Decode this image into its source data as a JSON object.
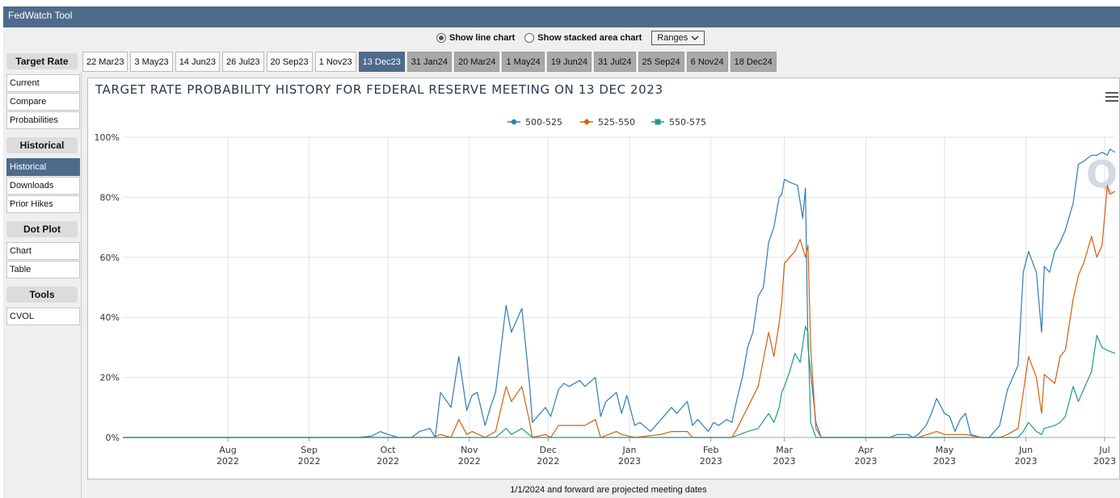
{
  "app": {
    "title": "FedWatch Tool"
  },
  "view_mode": {
    "line_label": "Show line chart",
    "area_label": "Show stacked area chart",
    "selected": "line",
    "ranges_label": "Ranges"
  },
  "sidebar": {
    "sections": [
      {
        "heading": "Target Rate",
        "items": [
          "Current",
          "Compare",
          "Probabilities"
        ]
      },
      {
        "heading": "Historical",
        "items": [
          "Historical",
          "Downloads",
          "Prior Hikes"
        ]
      },
      {
        "heading": "Dot Plot",
        "items": [
          "Chart",
          "Table"
        ]
      },
      {
        "heading": "Tools",
        "items": [
          "CVOL"
        ]
      }
    ],
    "active_item": "Historical"
  },
  "meeting_tabs": {
    "items": [
      "22 Mar23",
      "3 May23",
      "14 Jun23",
      "26 Jul23",
      "20 Sep23",
      "1 Nov23",
      "13 Dec23",
      "31 Jan24",
      "20 Mar24",
      "1 May24",
      "19 Jun24",
      "31 Jul24",
      "25 Sep24",
      "6 Nov24",
      "18 Dec24"
    ],
    "active": "13 Dec23",
    "future_from_index": 7
  },
  "footer_note": "1/1/2024 and forward are projected meeting dates",
  "colors": {
    "s500": "#2f7cb5",
    "s525": "#d45f0e",
    "s550": "#1e9a8a",
    "active_tab": "#4f6b8c"
  },
  "chart_data": {
    "type": "line",
    "title": "TARGET RATE PROBABILITY HISTORY FOR FEDERAL RESERVE MEETING ON 13 DEC 2023",
    "ylabel": "",
    "xlabel": "",
    "ylim": [
      0,
      100
    ],
    "y_ticks": [
      "0%",
      "20%",
      "40%",
      "60%",
      "80%",
      "100%"
    ],
    "x_ticks": [
      {
        "date": "2022-08-01",
        "month": "Aug",
        "year": "2022"
      },
      {
        "date": "2022-09-01",
        "month": "Sep",
        "year": "2022"
      },
      {
        "date": "2022-10-01",
        "month": "Oct",
        "year": "2022"
      },
      {
        "date": "2022-11-01",
        "month": "Nov",
        "year": "2022"
      },
      {
        "date": "2022-12-01",
        "month": "Dec",
        "year": "2022"
      },
      {
        "date": "2023-01-01",
        "month": "Jan",
        "year": "2023"
      },
      {
        "date": "2023-02-01",
        "month": "Feb",
        "year": "2023"
      },
      {
        "date": "2023-03-01",
        "month": "Mar",
        "year": "2023"
      },
      {
        "date": "2023-04-01",
        "month": "Apr",
        "year": "2023"
      },
      {
        "date": "2023-05-01",
        "month": "May",
        "year": "2023"
      },
      {
        "date": "2023-06-01",
        "month": "Jun",
        "year": "2023"
      },
      {
        "date": "2023-07-01",
        "month": "Jul",
        "year": "2023"
      }
    ],
    "x_range": [
      "2022-06-22",
      "2023-07-05"
    ],
    "grid": true,
    "legend_position": "top-center",
    "series": [
      {
        "name": "500-525",
        "points": [
          [
            "2022-06-22",
            0
          ],
          [
            "2022-09-20",
            0
          ],
          [
            "2022-09-25",
            0.5
          ],
          [
            "2022-09-28",
            2
          ],
          [
            "2022-10-01",
            1
          ],
          [
            "2022-10-05",
            0
          ],
          [
            "2022-10-10",
            0
          ],
          [
            "2022-10-13",
            2
          ],
          [
            "2022-10-17",
            3
          ],
          [
            "2022-10-19",
            0
          ],
          [
            "2022-10-21",
            15
          ],
          [
            "2022-10-25",
            10
          ],
          [
            "2022-10-28",
            27
          ],
          [
            "2022-10-31",
            9
          ],
          [
            "2022-11-02",
            14
          ],
          [
            "2022-11-04",
            15
          ],
          [
            "2022-11-07",
            4
          ],
          [
            "2022-11-09",
            10
          ],
          [
            "2022-11-11",
            15
          ],
          [
            "2022-11-15",
            44
          ],
          [
            "2022-11-17",
            35
          ],
          [
            "2022-11-21",
            43
          ],
          [
            "2022-11-24",
            17
          ],
          [
            "2022-11-25",
            5
          ],
          [
            "2022-11-28",
            8
          ],
          [
            "2022-11-30",
            10
          ],
          [
            "2022-12-02",
            7
          ],
          [
            "2022-12-05",
            16
          ],
          [
            "2022-12-07",
            18
          ],
          [
            "2022-12-09",
            17
          ],
          [
            "2022-12-13",
            19
          ],
          [
            "2022-12-15",
            17
          ],
          [
            "2022-12-19",
            20
          ],
          [
            "2022-12-21",
            7
          ],
          [
            "2022-12-23",
            12
          ],
          [
            "2022-12-27",
            15
          ],
          [
            "2022-12-29",
            8
          ],
          [
            "2022-12-31",
            14
          ],
          [
            "2023-01-03",
            4
          ],
          [
            "2023-01-05",
            5
          ],
          [
            "2023-01-09",
            2
          ],
          [
            "2023-01-11",
            4
          ],
          [
            "2023-01-13",
            6
          ],
          [
            "2023-01-17",
            10
          ],
          [
            "2023-01-19",
            8
          ],
          [
            "2023-01-23",
            12
          ],
          [
            "2023-01-25",
            4
          ],
          [
            "2023-01-27",
            6
          ],
          [
            "2023-01-31",
            2
          ],
          [
            "2023-02-02",
            5
          ],
          [
            "2023-02-04",
            4
          ],
          [
            "2023-02-07",
            6
          ],
          [
            "2023-02-09",
            5
          ],
          [
            "2023-02-11",
            13
          ],
          [
            "2023-02-13",
            20
          ],
          [
            "2023-02-15",
            30
          ],
          [
            "2023-02-17",
            35
          ],
          [
            "2023-02-19",
            47
          ],
          [
            "2023-02-21",
            50
          ],
          [
            "2023-02-23",
            65
          ],
          [
            "2023-02-25",
            70
          ],
          [
            "2023-02-27",
            80
          ],
          [
            "2023-02-28",
            81
          ],
          [
            "2023-03-01",
            86
          ],
          [
            "2023-03-03",
            85
          ],
          [
            "2023-03-06",
            84
          ],
          [
            "2023-03-08",
            73
          ],
          [
            "2023-03-09",
            83
          ],
          [
            "2023-03-10",
            30
          ],
          [
            "2023-03-13",
            5
          ],
          [
            "2023-03-15",
            0
          ],
          [
            "2023-03-20",
            0
          ],
          [
            "2023-04-01",
            0
          ],
          [
            "2023-04-10",
            0
          ],
          [
            "2023-04-13",
            1
          ],
          [
            "2023-04-17",
            1
          ],
          [
            "2023-04-19",
            0
          ],
          [
            "2023-04-21",
            1
          ],
          [
            "2023-04-24",
            4
          ],
          [
            "2023-04-26",
            8
          ],
          [
            "2023-04-28",
            13
          ],
          [
            "2023-05-01",
            8
          ],
          [
            "2023-05-03",
            7
          ],
          [
            "2023-05-05",
            2
          ],
          [
            "2023-05-07",
            6
          ],
          [
            "2023-05-09",
            8
          ],
          [
            "2023-05-11",
            1
          ],
          [
            "2023-05-15",
            0
          ],
          [
            "2023-05-18",
            0
          ],
          [
            "2023-05-22",
            4
          ],
          [
            "2023-05-25",
            16
          ],
          [
            "2023-05-29",
            24
          ],
          [
            "2023-05-31",
            55
          ],
          [
            "2023-06-02",
            62
          ],
          [
            "2023-06-05",
            55
          ],
          [
            "2023-06-07",
            35
          ],
          [
            "2023-06-08",
            57
          ],
          [
            "2023-06-10",
            55
          ],
          [
            "2023-06-12",
            62
          ],
          [
            "2023-06-14",
            65
          ],
          [
            "2023-06-16",
            69
          ],
          [
            "2023-06-19",
            78
          ],
          [
            "2023-06-21",
            91
          ],
          [
            "2023-06-23",
            92
          ],
          [
            "2023-06-26",
            94
          ],
          [
            "2023-06-28",
            94
          ],
          [
            "2023-06-30",
            95
          ],
          [
            "2023-07-02",
            94
          ],
          [
            "2023-07-03",
            96
          ],
          [
            "2023-07-05",
            95
          ]
        ]
      },
      {
        "name": "525-550",
        "points": [
          [
            "2022-06-22",
            0
          ],
          [
            "2022-10-18",
            0
          ],
          [
            "2022-10-21",
            1
          ],
          [
            "2022-10-25",
            0
          ],
          [
            "2022-10-28",
            6
          ],
          [
            "2022-10-31",
            1
          ],
          [
            "2022-11-02",
            2
          ],
          [
            "2022-11-07",
            0
          ],
          [
            "2022-11-11",
            2
          ],
          [
            "2022-11-15",
            17
          ],
          [
            "2022-11-17",
            12
          ],
          [
            "2022-11-21",
            17
          ],
          [
            "2022-11-24",
            5
          ],
          [
            "2022-11-25",
            0
          ],
          [
            "2022-11-30",
            1
          ],
          [
            "2022-12-02",
            0
          ],
          [
            "2022-12-05",
            4
          ],
          [
            "2022-12-09",
            4
          ],
          [
            "2022-12-15",
            4
          ],
          [
            "2022-12-19",
            6
          ],
          [
            "2022-12-21",
            0
          ],
          [
            "2022-12-27",
            2
          ],
          [
            "2022-12-29",
            1
          ],
          [
            "2023-01-03",
            0
          ],
          [
            "2023-01-13",
            1
          ],
          [
            "2023-01-17",
            2
          ],
          [
            "2023-01-23",
            2
          ],
          [
            "2023-01-25",
            0
          ],
          [
            "2023-02-09",
            0
          ],
          [
            "2023-02-11",
            3
          ],
          [
            "2023-02-15",
            10
          ],
          [
            "2023-02-19",
            17
          ],
          [
            "2023-02-23",
            35
          ],
          [
            "2023-02-25",
            27
          ],
          [
            "2023-02-27",
            38
          ],
          [
            "2023-02-28",
            45
          ],
          [
            "2023-03-01",
            58
          ],
          [
            "2023-03-03",
            60
          ],
          [
            "2023-03-05",
            62
          ],
          [
            "2023-03-07",
            66
          ],
          [
            "2023-03-09",
            60
          ],
          [
            "2023-03-10",
            64
          ],
          [
            "2023-03-11",
            30
          ],
          [
            "2023-03-13",
            3
          ],
          [
            "2023-03-15",
            0
          ],
          [
            "2023-04-21",
            0
          ],
          [
            "2023-04-28",
            2
          ],
          [
            "2023-05-01",
            1
          ],
          [
            "2023-05-07",
            1
          ],
          [
            "2023-05-09",
            1
          ],
          [
            "2023-05-15",
            0
          ],
          [
            "2023-05-22",
            0
          ],
          [
            "2023-05-25",
            1
          ],
          [
            "2023-05-29",
            3
          ],
          [
            "2023-05-31",
            15
          ],
          [
            "2023-06-02",
            27
          ],
          [
            "2023-06-05",
            20
          ],
          [
            "2023-06-07",
            8
          ],
          [
            "2023-06-08",
            21
          ],
          [
            "2023-06-12",
            18
          ],
          [
            "2023-06-14",
            27
          ],
          [
            "2023-06-16",
            29
          ],
          [
            "2023-06-19",
            46
          ],
          [
            "2023-06-21",
            54
          ],
          [
            "2023-06-23",
            58
          ],
          [
            "2023-06-26",
            67
          ],
          [
            "2023-06-28",
            60
          ],
          [
            "2023-06-30",
            64
          ],
          [
            "2023-07-02",
            84
          ],
          [
            "2023-07-03",
            81
          ],
          [
            "2023-07-05",
            82
          ]
        ]
      },
      {
        "name": "550-575",
        "points": [
          [
            "2022-06-22",
            0
          ],
          [
            "2022-11-11",
            0
          ],
          [
            "2022-11-15",
            3
          ],
          [
            "2022-11-17",
            1
          ],
          [
            "2022-11-21",
            3
          ],
          [
            "2022-11-25",
            0
          ],
          [
            "2023-02-09",
            0
          ],
          [
            "2023-02-15",
            2
          ],
          [
            "2023-02-19",
            3
          ],
          [
            "2023-02-23",
            8
          ],
          [
            "2023-02-25",
            5
          ],
          [
            "2023-02-27",
            10
          ],
          [
            "2023-02-28",
            15
          ],
          [
            "2023-03-01",
            17
          ],
          [
            "2023-03-03",
            22
          ],
          [
            "2023-03-05",
            28
          ],
          [
            "2023-03-07",
            25
          ],
          [
            "2023-03-09",
            37
          ],
          [
            "2023-03-10",
            35
          ],
          [
            "2023-03-11",
            5
          ],
          [
            "2023-03-13",
            0
          ],
          [
            "2023-05-29",
            0
          ],
          [
            "2023-05-31",
            2
          ],
          [
            "2023-06-02",
            5
          ],
          [
            "2023-06-05",
            2
          ],
          [
            "2023-06-07",
            1
          ],
          [
            "2023-06-08",
            3
          ],
          [
            "2023-06-12",
            4
          ],
          [
            "2023-06-14",
            5
          ],
          [
            "2023-06-16",
            7
          ],
          [
            "2023-06-19",
            17
          ],
          [
            "2023-06-21",
            12
          ],
          [
            "2023-06-23",
            16
          ],
          [
            "2023-06-26",
            22
          ],
          [
            "2023-06-28",
            34
          ],
          [
            "2023-06-30",
            30
          ],
          [
            "2023-07-02",
            29
          ],
          [
            "2023-07-05",
            28
          ]
        ]
      }
    ]
  }
}
